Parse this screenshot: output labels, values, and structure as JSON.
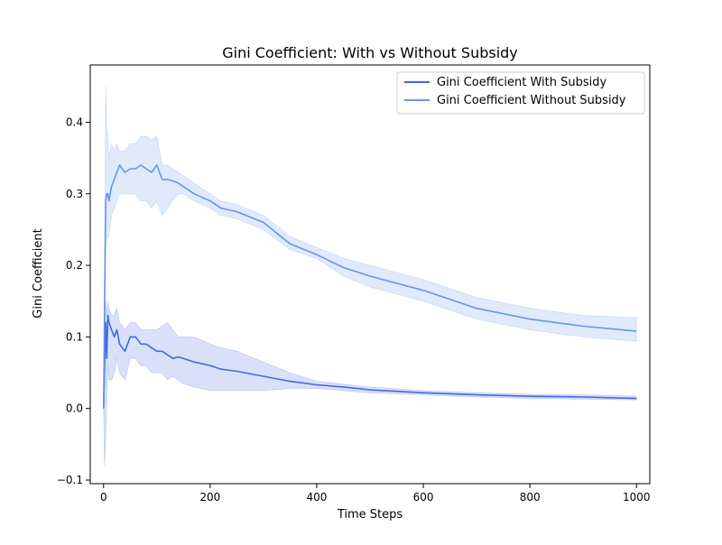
{
  "chart_data": {
    "type": "line",
    "title": "Gini Coefficient: With vs Without Subsidy",
    "xlabel": "Time Steps",
    "ylabel": "Gini Coefficient",
    "xlim": [
      -25,
      1025
    ],
    "ylim": [
      -0.105,
      0.48
    ],
    "x_ticks": [
      0,
      200,
      400,
      600,
      800,
      1000
    ],
    "y_ticks": [
      -0.1,
      0.0,
      0.1,
      0.2,
      0.3,
      0.4
    ],
    "x_tick_labels": [
      "0",
      "200",
      "400",
      "600",
      "800",
      "1000"
    ],
    "y_tick_labels": [
      "−0.1",
      "0.0",
      "0.1",
      "0.2",
      "0.3",
      "0.4"
    ],
    "grid": false,
    "legend": {
      "position": "top-right",
      "entries": [
        "Gini Coefficient With Subsidy",
        "Gini Coefficient Without Subsidy"
      ]
    },
    "series": [
      {
        "name": "Gini Coefficient With Subsidy",
        "color": "#4169e1",
        "band_color": "#4169e1",
        "x": [
          0,
          2,
          4,
          6,
          8,
          10,
          15,
          20,
          25,
          30,
          40,
          50,
          60,
          70,
          80,
          90,
          100,
          110,
          120,
          130,
          140,
          150,
          170,
          200,
          220,
          250,
          300,
          350,
          400,
          450,
          500,
          600,
          700,
          800,
          900,
          1000
        ],
        "y": [
          0.0,
          0.06,
          0.12,
          0.07,
          0.13,
          0.12,
          0.11,
          0.1,
          0.11,
          0.09,
          0.08,
          0.1,
          0.1,
          0.09,
          0.09,
          0.085,
          0.08,
          0.08,
          0.075,
          0.07,
          0.072,
          0.07,
          0.065,
          0.06,
          0.055,
          0.052,
          0.045,
          0.038,
          0.033,
          0.03,
          0.026,
          0.022,
          0.019,
          0.017,
          0.016,
          0.014
        ],
        "lower": [
          0.0,
          -0.08,
          -0.04,
          0.02,
          0.06,
          0.04,
          0.04,
          0.05,
          0.07,
          0.05,
          0.04,
          0.07,
          0.07,
          0.06,
          0.06,
          0.05,
          0.05,
          0.05,
          0.04,
          0.045,
          0.04,
          0.035,
          0.03,
          0.025,
          0.025,
          0.025,
          0.025,
          0.028,
          0.028,
          0.025,
          0.022,
          0.019,
          0.016,
          0.014,
          0.013,
          0.012
        ],
        "upper": [
          0.0,
          0.1,
          0.15,
          0.13,
          0.15,
          0.14,
          0.13,
          0.13,
          0.14,
          0.12,
          0.11,
          0.12,
          0.12,
          0.11,
          0.11,
          0.11,
          0.11,
          0.115,
          0.12,
          0.11,
          0.1,
          0.1,
          0.1,
          0.09,
          0.085,
          0.08,
          0.065,
          0.05,
          0.038,
          0.034,
          0.03,
          0.025,
          0.022,
          0.02,
          0.019,
          0.017
        ]
      },
      {
        "name": "Gini Coefficient Without Subsidy",
        "color": "#6495ed",
        "band_color": "#6495ed",
        "x": [
          0,
          2,
          4,
          6,
          8,
          10,
          15,
          20,
          25,
          30,
          40,
          50,
          60,
          70,
          80,
          90,
          100,
          110,
          120,
          130,
          140,
          150,
          170,
          200,
          220,
          250,
          300,
          350,
          400,
          450,
          500,
          600,
          700,
          800,
          900,
          1000
        ],
        "y": [
          0.0,
          0.15,
          0.29,
          0.3,
          0.3,
          0.29,
          0.31,
          0.32,
          0.33,
          0.34,
          0.33,
          0.335,
          0.335,
          0.34,
          0.335,
          0.33,
          0.34,
          0.32,
          0.32,
          0.318,
          0.315,
          0.31,
          0.3,
          0.29,
          0.28,
          0.275,
          0.26,
          0.23,
          0.215,
          0.197,
          0.185,
          0.165,
          0.14,
          0.125,
          0.115,
          0.108
        ],
        "lower": [
          0.0,
          0.1,
          0.22,
          0.24,
          0.24,
          0.24,
          0.27,
          0.28,
          0.29,
          0.3,
          0.3,
          0.3,
          0.3,
          0.29,
          0.29,
          0.28,
          0.29,
          0.27,
          0.28,
          0.29,
          0.3,
          0.3,
          0.29,
          0.28,
          0.27,
          0.265,
          0.25,
          0.222,
          0.21,
          0.185,
          0.17,
          0.15,
          0.125,
          0.11,
          0.1,
          0.094
        ],
        "upper": [
          0.0,
          0.2,
          0.45,
          0.39,
          0.38,
          0.35,
          0.37,
          0.36,
          0.37,
          0.36,
          0.36,
          0.37,
          0.37,
          0.38,
          0.38,
          0.375,
          0.38,
          0.34,
          0.34,
          0.335,
          0.33,
          0.325,
          0.315,
          0.3,
          0.29,
          0.285,
          0.27,
          0.24,
          0.225,
          0.21,
          0.2,
          0.18,
          0.155,
          0.14,
          0.13,
          0.127
        ]
      }
    ]
  }
}
